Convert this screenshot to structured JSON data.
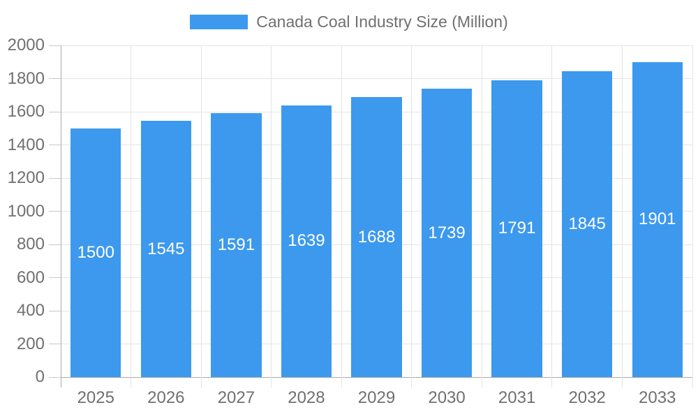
{
  "chart_data": {
    "type": "bar",
    "title": "Canada Coal Industry Size (Million)",
    "categories": [
      "2025",
      "2026",
      "2027",
      "2028",
      "2029",
      "2030",
      "2031",
      "2032",
      "2033"
    ],
    "values": [
      1500,
      1545,
      1591,
      1639,
      1688,
      1739,
      1791,
      1845,
      1901
    ],
    "series": [
      {
        "name": "Canada Coal Industry Size (Million)",
        "values": [
          1500,
          1545,
          1591,
          1639,
          1688,
          1739,
          1791,
          1845,
          1901
        ]
      }
    ],
    "xlabel": "",
    "ylabel": "",
    "ylim": [
      0,
      2000
    ],
    "ytick_step": 200,
    "grid": true,
    "value_labels_shown": true,
    "legend_position": "top-center",
    "colors": {
      "bar": "#3c99ee",
      "grid": "#e4e4e4",
      "axis": "#ababab",
      "tick_text": "#707070",
      "bar_label_text": "#ffffff"
    }
  }
}
